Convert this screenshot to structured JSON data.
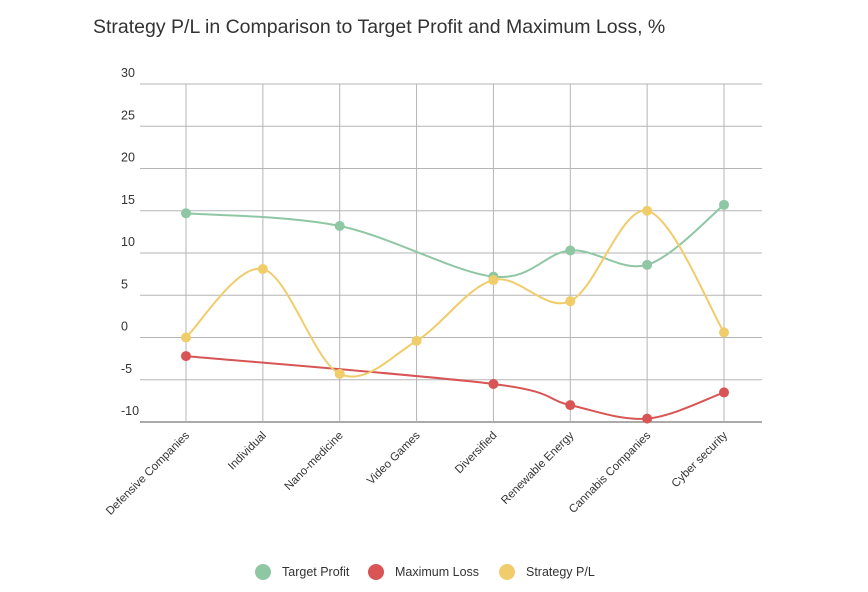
{
  "chart_data": {
    "type": "line",
    "title": "Strategy P/L in Comparison to Target Profit and Maximum Loss, %",
    "xlabel": "",
    "ylabel": "",
    "ylim": [
      -10,
      30
    ],
    "yticks": [
      30,
      25,
      20,
      15,
      10,
      5,
      0,
      -5,
      -10
    ],
    "grid": true,
    "legend_position": "bottom",
    "categories": [
      "Defensive Companies",
      "Individual",
      "Nano-medicine",
      "Video Games",
      "Diversified",
      "Renewable Energy",
      "Cannabis Companies",
      "Cyber security"
    ],
    "series": [
      {
        "name": "Target Profit",
        "color": "#8fc7a4",
        "values": [
          14.7,
          null,
          13.2,
          null,
          7.2,
          10.3,
          8.6,
          15.7
        ]
      },
      {
        "name": "Maximum Loss",
        "color": "#d95454",
        "values": [
          -2.2,
          null,
          null,
          null,
          -5.5,
          -8.0,
          -9.6,
          -6.5
        ]
      },
      {
        "name": "Strategy P/L",
        "color": "#f0cc6a",
        "values": [
          0.0,
          8.1,
          -4.3,
          -0.4,
          6.8,
          4.3,
          15.0,
          0.6
        ]
      }
    ]
  }
}
